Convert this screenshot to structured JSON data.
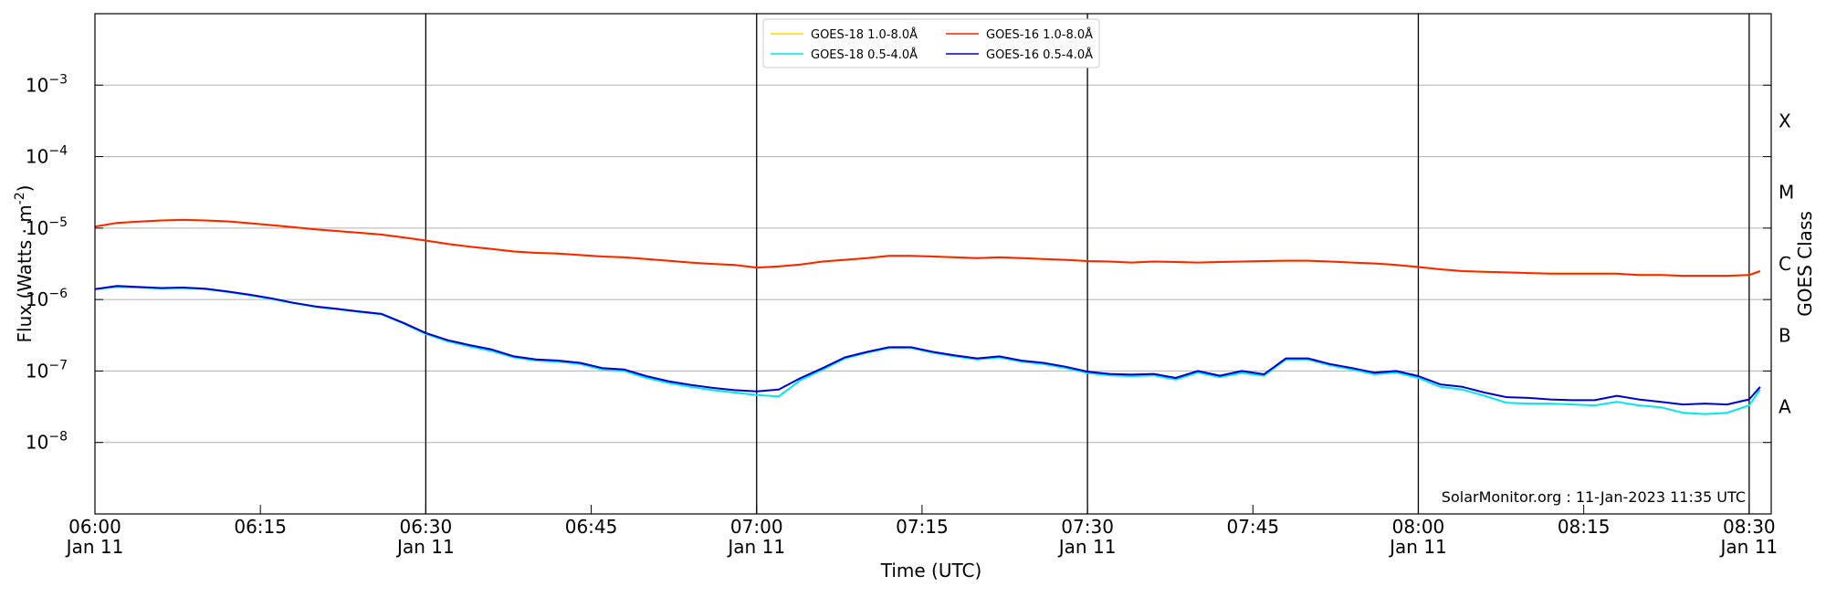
{
  "chart_data": {
    "type": "line",
    "xlabel": "Time (UTC)",
    "ylabel": "Flux (Watts · m",
    "ylabel_sup": "-2",
    "right_label": "GOES Class",
    "y_scale": "log",
    "xlim": [
      "06:00",
      "08:32"
    ],
    "ylim": [
      1e-09,
      0.01
    ],
    "grid": "horizontal at each decade",
    "x_ticks": [
      {
        "time": "06:00",
        "label": "06:00",
        "sub": "Jan 11"
      },
      {
        "time": "06:15",
        "label": "06:15",
        "sub": ""
      },
      {
        "time": "06:30",
        "label": "06:30",
        "sub": "Jan 11"
      },
      {
        "time": "06:45",
        "label": "06:45",
        "sub": ""
      },
      {
        "time": "07:00",
        "label": "07:00",
        "sub": "Jan 11"
      },
      {
        "time": "07:15",
        "label": "07:15",
        "sub": ""
      },
      {
        "time": "07:30",
        "label": "07:30",
        "sub": "Jan 11"
      },
      {
        "time": "07:45",
        "label": "07:45",
        "sub": ""
      },
      {
        "time": "08:00",
        "label": "08:00",
        "sub": "Jan 11"
      },
      {
        "time": "08:15",
        "label": "08:15",
        "sub": ""
      },
      {
        "time": "08:30",
        "label": "08:30",
        "sub": "Jan 11"
      }
    ],
    "vertical_lines": [
      "06:30",
      "07:00",
      "07:30",
      "08:00",
      "08:30"
    ],
    "y_ticks": [
      {
        "value": 1e-08,
        "base": "10",
        "exp": "−8"
      },
      {
        "value": 1e-07,
        "base": "10",
        "exp": "−7"
      },
      {
        "value": 1e-06,
        "base": "10",
        "exp": "−6"
      },
      {
        "value": 1e-05,
        "base": "10",
        "exp": "−5"
      },
      {
        "value": 0.0001,
        "base": "10",
        "exp": "−4"
      },
      {
        "value": 0.001,
        "base": "10",
        "exp": "−3"
      }
    ],
    "goes_classes": [
      {
        "label": "A",
        "value": 3.16e-08
      },
      {
        "label": "B",
        "value": 3.16e-07
      },
      {
        "label": "C",
        "value": 3.16e-06
      },
      {
        "label": "M",
        "value": 3.16e-05
      },
      {
        "label": "X",
        "value": 0.000316
      }
    ],
    "legend": {
      "placement": "top-center",
      "columns": [
        [
          "GOES-18 1.0-8.0Å",
          "GOES-18 0.5-4.0Å"
        ],
        [
          "GOES-16 1.0-8.0Å",
          "GOES-16 0.5-4.0Å"
        ]
      ]
    },
    "annotation": "SolarMonitor.org : 11-Jan-2023 11:35 UTC",
    "x": [
      "06:00",
      "06:02",
      "06:04",
      "06:06",
      "06:08",
      "06:10",
      "06:12",
      "06:14",
      "06:16",
      "06:18",
      "06:20",
      "06:22",
      "06:24",
      "06:26",
      "06:28",
      "06:30",
      "06:32",
      "06:34",
      "06:36",
      "06:38",
      "06:40",
      "06:42",
      "06:44",
      "06:46",
      "06:48",
      "06:50",
      "06:52",
      "06:54",
      "06:56",
      "06:58",
      "07:00",
      "07:02",
      "07:04",
      "07:06",
      "07:08",
      "07:10",
      "07:12",
      "07:14",
      "07:16",
      "07:18",
      "07:20",
      "07:22",
      "07:24",
      "07:26",
      "07:28",
      "07:30",
      "07:32",
      "07:34",
      "07:36",
      "07:38",
      "07:40",
      "07:42",
      "07:44",
      "07:46",
      "07:48",
      "07:50",
      "07:52",
      "07:54",
      "07:56",
      "07:58",
      "08:00",
      "08:02",
      "08:04",
      "08:06",
      "08:08",
      "08:10",
      "08:12",
      "08:14",
      "08:16",
      "08:18",
      "08:20",
      "08:22",
      "08:24",
      "08:26",
      "08:28",
      "08:30",
      "08:31"
    ],
    "series": [
      {
        "name": "GOES-18 1.0-8.0Å",
        "color": "#ffd700",
        "values": [
          1.05e-05,
          1.18e-05,
          1.23e-05,
          1.28e-05,
          1.3e-05,
          1.28e-05,
          1.24e-05,
          1.17e-05,
          1.1e-05,
          1.03e-05,
          9.6e-06,
          9.1e-06,
          8.6e-06,
          8.1e-06,
          7.4e-06,
          6.7e-06,
          6e-06,
          5.5e-06,
          5.1e-06,
          4.7e-06,
          4.5e-06,
          4.4e-06,
          4.2e-06,
          4e-06,
          3.9e-06,
          3.7e-06,
          3.5e-06,
          3.3e-06,
          3.15e-06,
          3.05e-06,
          2.8e-06,
          2.9e-06,
          3.1e-06,
          3.4e-06,
          3.6e-06,
          3.8e-06,
          4.1e-06,
          4.1e-06,
          4e-06,
          3.9e-06,
          3.8e-06,
          3.9e-06,
          3.8e-06,
          3.7e-06,
          3.6e-06,
          3.45e-06,
          3.4e-06,
          3.3e-06,
          3.4e-06,
          3.35e-06,
          3.3e-06,
          3.35e-06,
          3.4e-06,
          3.45e-06,
          3.5e-06,
          3.5e-06,
          3.4e-06,
          3.3e-06,
          3.2e-06,
          3.05e-06,
          2.85e-06,
          2.65e-06,
          2.5e-06,
          2.45e-06,
          2.4e-06,
          2.35e-06,
          2.3e-06,
          2.3e-06,
          2.3e-06,
          2.3e-06,
          2.2e-06,
          2.2e-06,
          2.15e-06,
          2.15e-06,
          2.15e-06,
          2.2e-06,
          2.5e-06
        ]
      },
      {
        "name": "GOES-18 0.5-4.0Å",
        "color": "#00e5ee",
        "values": [
          1.4e-06,
          1.5e-06,
          1.47e-06,
          1.43e-06,
          1.45e-06,
          1.4e-06,
          1.28e-06,
          1.15e-06,
          1.02e-06,
          8.9e-07,
          7.9e-07,
          7.3e-07,
          6.7e-07,
          6.2e-07,
          4.6e-07,
          3.3e-07,
          2.6e-07,
          2.2e-07,
          1.9e-07,
          1.55e-07,
          1.4e-07,
          1.35e-07,
          1.25e-07,
          1.05e-07,
          1e-07,
          8e-08,
          6.8e-08,
          6e-08,
          5.4e-08,
          5e-08,
          4.6e-08,
          4.4e-08,
          7.5e-08,
          1.05e-07,
          1.5e-07,
          1.8e-07,
          2.1e-07,
          2.1e-07,
          1.8e-07,
          1.6e-07,
          1.45e-07,
          1.55e-07,
          1.35e-07,
          1.25e-07,
          1.1e-07,
          9.4e-08,
          8.7e-08,
          8.5e-08,
          8.7e-08,
          7.6e-08,
          9.5e-08,
          8.2e-08,
          9.4e-08,
          8.6e-08,
          1.45e-07,
          1.45e-07,
          1.2e-07,
          1.05e-07,
          9e-08,
          9.5e-08,
          8e-08,
          6e-08,
          5.5e-08,
          4.5e-08,
          3.6e-08,
          3.5e-08,
          3.5e-08,
          3.4e-08,
          3.3e-08,
          3.7e-08,
          3.3e-08,
          3.1e-08,
          2.6e-08,
          2.5e-08,
          2.6e-08,
          3.3e-08,
          5.5e-08
        ]
      },
      {
        "name": "GOES-16 1.0-8.0Å",
        "color": "#ff2200",
        "values": [
          1.05e-05,
          1.18e-05,
          1.23e-05,
          1.28e-05,
          1.3e-05,
          1.28e-05,
          1.24e-05,
          1.17e-05,
          1.1e-05,
          1.03e-05,
          9.6e-06,
          9.1e-06,
          8.6e-06,
          8.1e-06,
          7.4e-06,
          6.7e-06,
          6e-06,
          5.5e-06,
          5.1e-06,
          4.7e-06,
          4.5e-06,
          4.4e-06,
          4.2e-06,
          4e-06,
          3.9e-06,
          3.7e-06,
          3.5e-06,
          3.3e-06,
          3.15e-06,
          3.05e-06,
          2.8e-06,
          2.9e-06,
          3.1e-06,
          3.4e-06,
          3.6e-06,
          3.8e-06,
          4.1e-06,
          4.1e-06,
          4e-06,
          3.9e-06,
          3.8e-06,
          3.9e-06,
          3.8e-06,
          3.7e-06,
          3.6e-06,
          3.45e-06,
          3.4e-06,
          3.3e-06,
          3.4e-06,
          3.35e-06,
          3.3e-06,
          3.35e-06,
          3.4e-06,
          3.45e-06,
          3.5e-06,
          3.5e-06,
          3.4e-06,
          3.3e-06,
          3.2e-06,
          3.05e-06,
          2.85e-06,
          2.65e-06,
          2.5e-06,
          2.45e-06,
          2.4e-06,
          2.35e-06,
          2.3e-06,
          2.3e-06,
          2.3e-06,
          2.3e-06,
          2.2e-06,
          2.2e-06,
          2.15e-06,
          2.15e-06,
          2.15e-06,
          2.2e-06,
          2.5e-06
        ]
      },
      {
        "name": "GOES-16 0.5-4.0Å",
        "color": "#0000cc",
        "values": [
          1.4e-06,
          1.55e-06,
          1.5e-06,
          1.45e-06,
          1.47e-06,
          1.42e-06,
          1.3e-06,
          1.17e-06,
          1.04e-06,
          9e-07,
          8e-07,
          7.4e-07,
          6.8e-07,
          6.3e-07,
          4.7e-07,
          3.4e-07,
          2.7e-07,
          2.3e-07,
          2e-07,
          1.6e-07,
          1.45e-07,
          1.4e-07,
          1.3e-07,
          1.1e-07,
          1.05e-07,
          8.5e-08,
          7.2e-08,
          6.4e-08,
          5.8e-08,
          5.4e-08,
          5.2e-08,
          5.5e-08,
          8e-08,
          1.1e-07,
          1.55e-07,
          1.85e-07,
          2.15e-07,
          2.15e-07,
          1.85e-07,
          1.65e-07,
          1.5e-07,
          1.6e-07,
          1.4e-07,
          1.3e-07,
          1.15e-07,
          9.8e-08,
          9.1e-08,
          8.9e-08,
          9.1e-08,
          8e-08,
          1e-07,
          8.6e-08,
          1e-07,
          9e-08,
          1.5e-07,
          1.5e-07,
          1.25e-07,
          1.1e-07,
          9.5e-08,
          1e-07,
          8.5e-08,
          6.5e-08,
          6e-08,
          5e-08,
          4.3e-08,
          4.2e-08,
          4e-08,
          3.9e-08,
          3.9e-08,
          4.5e-08,
          4e-08,
          3.7e-08,
          3.4e-08,
          3.5e-08,
          3.4e-08,
          4e-08,
          6e-08
        ]
      }
    ]
  }
}
